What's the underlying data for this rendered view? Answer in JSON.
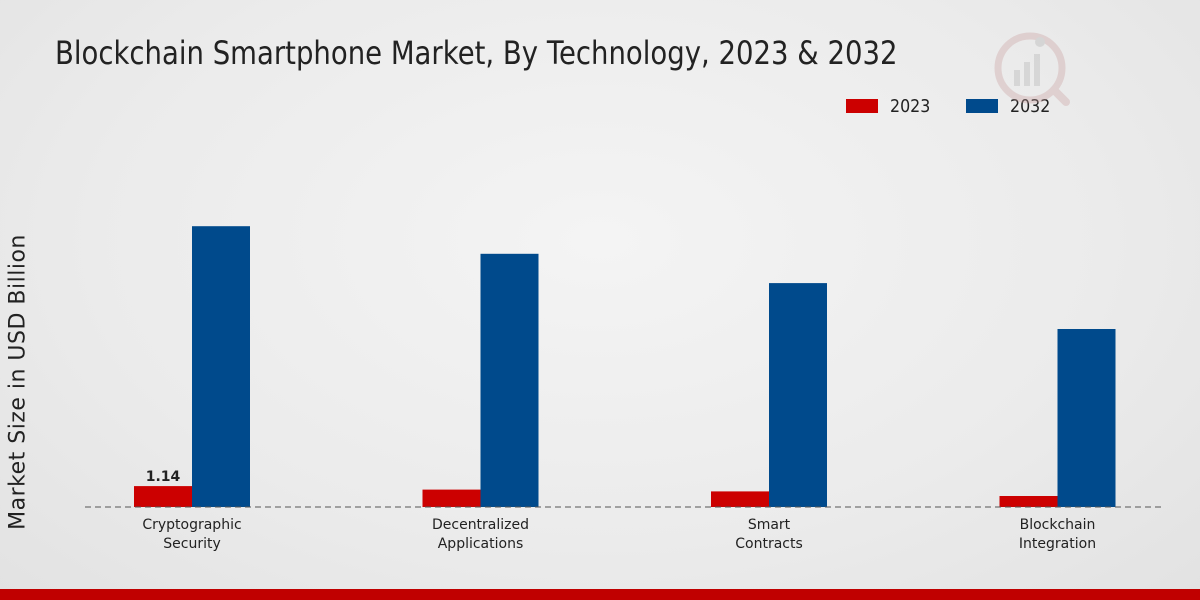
{
  "chart_data": {
    "type": "bar",
    "title": "Blockchain Smartphone Market, By Technology, 2023 & 2032",
    "xlabel": "",
    "ylabel": "Market Size in USD Billion",
    "categories": [
      "Cryptographic\nSecurity",
      "Decentralized\nApplications",
      "Smart\nContracts",
      "Blockchain\nIntegration"
    ],
    "series": [
      {
        "name": "2023",
        "color": "#cc0000",
        "values": [
          1.14,
          0.95,
          0.85,
          0.6
        ]
      },
      {
        "name": "2032",
        "color": "#004a8c",
        "values": [
          15.3,
          13.8,
          12.2,
          9.7
        ]
      }
    ],
    "data_labels": [
      {
        "series": "2023",
        "category_index": 0,
        "text": "1.14"
      }
    ],
    "ylim": [
      0,
      20
    ],
    "legend_position": "top-right",
    "grid": false
  }
}
